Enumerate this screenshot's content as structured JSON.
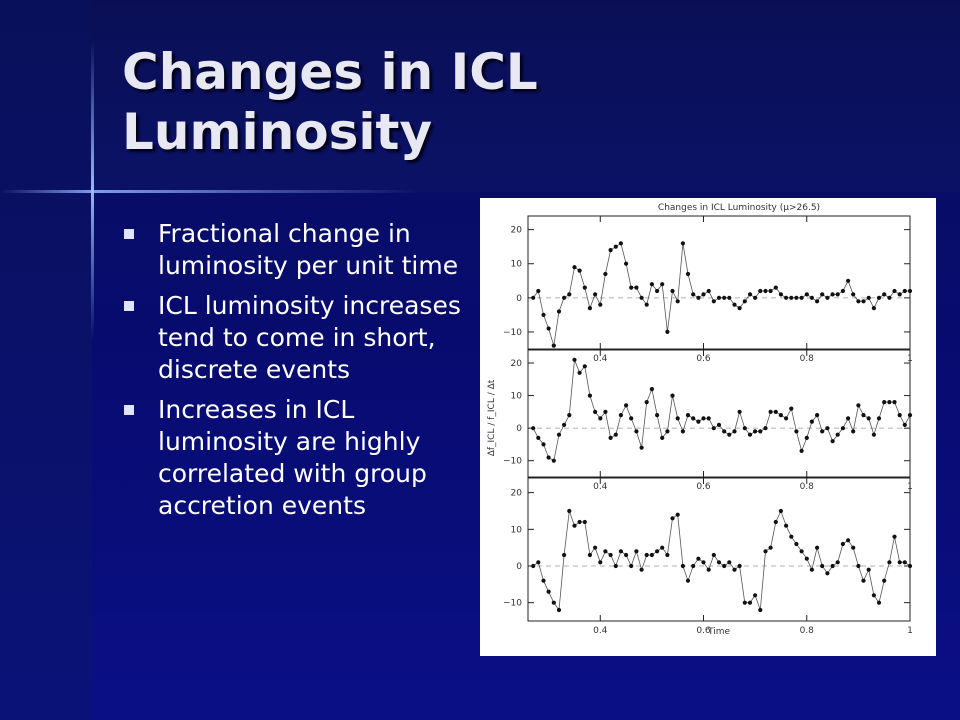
{
  "slide": {
    "title_line1": "Changes in ICL",
    "title_line2": "Luminosity",
    "bullets": [
      "Fractional change in luminosity per unit time",
      "ICL luminosity increases tend to come in short, discrete events",
      "Increases in ICL luminosity are highly correlated with group accretion events"
    ]
  },
  "chart_data": {
    "type": "scatter",
    "title": "Changes in ICL Luminosity (μ>26.5)",
    "xlabel": "Time",
    "ylabel": "Δf_ICL / f_ICL / Δt",
    "xlim": [
      0.26,
      1.0
    ],
    "ylim": [
      -15,
      24
    ],
    "x_ticks": [
      "0.4",
      "0.6",
      "0.8",
      "1"
    ],
    "y_ticks": [
      "20",
      "10",
      "0",
      "−10"
    ],
    "reference_line": 0,
    "panels": [
      {
        "name": "",
        "x": [
          0.27,
          0.28,
          0.29,
          0.3,
          0.31,
          0.32,
          0.33,
          0.34,
          0.35,
          0.36,
          0.37,
          0.38,
          0.39,
          0.4,
          0.41,
          0.42,
          0.43,
          0.44,
          0.45,
          0.46,
          0.47,
          0.48,
          0.49,
          0.5,
          0.51,
          0.52,
          0.53,
          0.54,
          0.55,
          0.56,
          0.57,
          0.58,
          0.59,
          0.6,
          0.61,
          0.62,
          0.63,
          0.64,
          0.65,
          0.66,
          0.67,
          0.68,
          0.69,
          0.7,
          0.71,
          0.72,
          0.73,
          0.74,
          0.75,
          0.76,
          0.77,
          0.78,
          0.79,
          0.8,
          0.81,
          0.82,
          0.83,
          0.84,
          0.85,
          0.86,
          0.87,
          0.88,
          0.89,
          0.9,
          0.91,
          0.92,
          0.93,
          0.94,
          0.95,
          0.96,
          0.97,
          0.98,
          0.99,
          1.0
        ],
        "y": [
          0,
          2,
          -5,
          -9,
          -14,
          -4,
          0,
          1,
          9,
          8,
          3,
          -3,
          1,
          -2,
          7,
          14,
          15,
          16,
          10,
          3,
          3,
          0,
          -2,
          4,
          2,
          4,
          -10,
          2,
          -1,
          16,
          7,
          1,
          0,
          1,
          2,
          -1,
          0,
          0,
          0,
          -2,
          -3,
          -1,
          1,
          0,
          2,
          2,
          2,
          3,
          1,
          0,
          0,
          0,
          0,
          1,
          0,
          -1,
          1,
          0,
          1,
          1,
          2,
          5,
          1,
          -1,
          -1,
          0,
          -3,
          0,
          1,
          0,
          2,
          1,
          2,
          2
        ]
      },
      {
        "name": "",
        "x": [
          0.27,
          0.28,
          0.29,
          0.3,
          0.31,
          0.32,
          0.33,
          0.34,
          0.35,
          0.36,
          0.37,
          0.38,
          0.39,
          0.4,
          0.41,
          0.42,
          0.43,
          0.44,
          0.45,
          0.46,
          0.47,
          0.48,
          0.49,
          0.5,
          0.51,
          0.52,
          0.53,
          0.54,
          0.55,
          0.56,
          0.57,
          0.58,
          0.59,
          0.6,
          0.61,
          0.62,
          0.63,
          0.64,
          0.65,
          0.66,
          0.67,
          0.68,
          0.69,
          0.7,
          0.71,
          0.72,
          0.73,
          0.74,
          0.75,
          0.76,
          0.77,
          0.78,
          0.79,
          0.8,
          0.81,
          0.82,
          0.83,
          0.84,
          0.85,
          0.86,
          0.87,
          0.88,
          0.89,
          0.9,
          0.91,
          0.92,
          0.93,
          0.94,
          0.95,
          0.96,
          0.97,
          0.98,
          0.99,
          1.0
        ],
        "y": [
          0,
          -3,
          -5,
          -9,
          -10,
          -2,
          1,
          4,
          21,
          17,
          19,
          10,
          5,
          3,
          5,
          -3,
          -2,
          4,
          7,
          3,
          -1,
          -6,
          8,
          12,
          4,
          -3,
          -1,
          10,
          3,
          -1,
          4,
          3,
          2,
          3,
          3,
          0,
          1,
          -1,
          -2,
          -1,
          5,
          0,
          -2,
          -1,
          -1,
          0,
          5,
          5,
          4,
          3,
          6,
          -1,
          -7,
          -3,
          2,
          4,
          -1,
          0,
          -4,
          -2,
          0,
          3,
          -1,
          7,
          4,
          3,
          -2,
          3,
          8,
          8,
          8,
          4,
          1,
          4
        ]
      },
      {
        "name": "",
        "x": [
          0.27,
          0.28,
          0.29,
          0.3,
          0.31,
          0.32,
          0.33,
          0.34,
          0.35,
          0.36,
          0.37,
          0.38,
          0.39,
          0.4,
          0.41,
          0.42,
          0.43,
          0.44,
          0.45,
          0.46,
          0.47,
          0.48,
          0.49,
          0.5,
          0.51,
          0.52,
          0.53,
          0.54,
          0.55,
          0.56,
          0.57,
          0.58,
          0.59,
          0.6,
          0.61,
          0.62,
          0.63,
          0.64,
          0.65,
          0.66,
          0.67,
          0.68,
          0.69,
          0.7,
          0.71,
          0.72,
          0.73,
          0.74,
          0.75,
          0.76,
          0.77,
          0.78,
          0.79,
          0.8,
          0.81,
          0.82,
          0.83,
          0.84,
          0.85,
          0.86,
          0.87,
          0.88,
          0.89,
          0.9,
          0.91,
          0.92,
          0.93,
          0.94,
          0.95,
          0.96,
          0.97,
          0.98,
          0.99,
          1.0
        ],
        "y": [
          0,
          1,
          -4,
          -7,
          -10,
          -12,
          3,
          15,
          11,
          12,
          12,
          3,
          5,
          1,
          4,
          3,
          0,
          4,
          3,
          0,
          4,
          -1,
          3,
          3,
          4,
          5,
          3,
          13,
          14,
          0,
          -4,
          0,
          2,
          1,
          -1,
          3,
          1,
          0,
          1,
          -1,
          0,
          -10,
          -10,
          -8,
          -12,
          4,
          5,
          12,
          15,
          11,
          8,
          6,
          4,
          2,
          -1,
          5,
          0,
          -2,
          0,
          1,
          6,
          7,
          5,
          0,
          -4,
          -1,
          -8,
          -10,
          -4,
          1,
          8,
          1,
          1,
          0
        ]
      }
    ]
  }
}
